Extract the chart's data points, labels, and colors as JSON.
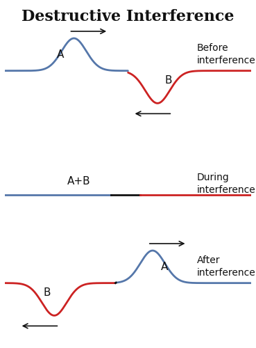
{
  "title": "Destructive Interference",
  "title_fontsize": 16,
  "label_fontsize": 10,
  "wave_lw": 2.0,
  "blue_color": "#5577aa",
  "red_color": "#cc2222",
  "black_color": "#111111",
  "bg_color": "#ffffff",
  "panel1_label": "Before\ninterference",
  "panel2_label": "During\ninterference",
  "panel3_label": "After\ninterference",
  "aplusb_label": "A+B"
}
